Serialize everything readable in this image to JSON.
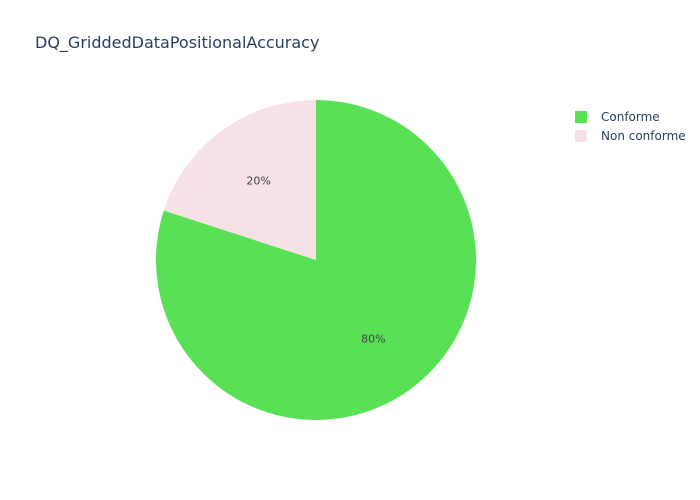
{
  "chart_data": {
    "type": "pie",
    "title": "DQ_GriddedDataPositionalAccuracy",
    "categories": [
      "Conforme",
      "Non conforme"
    ],
    "values": [
      80,
      20
    ],
    "labels": [
      "80%",
      "20%"
    ],
    "colors": [
      "#5ae055",
      "#f5e1e6"
    ],
    "legend_position": "top-right"
  },
  "legend": {
    "items": [
      {
        "label": "Conforme",
        "color": "#5ae055"
      },
      {
        "label": "Non conforme",
        "color": "#f5e1e6"
      }
    ]
  }
}
